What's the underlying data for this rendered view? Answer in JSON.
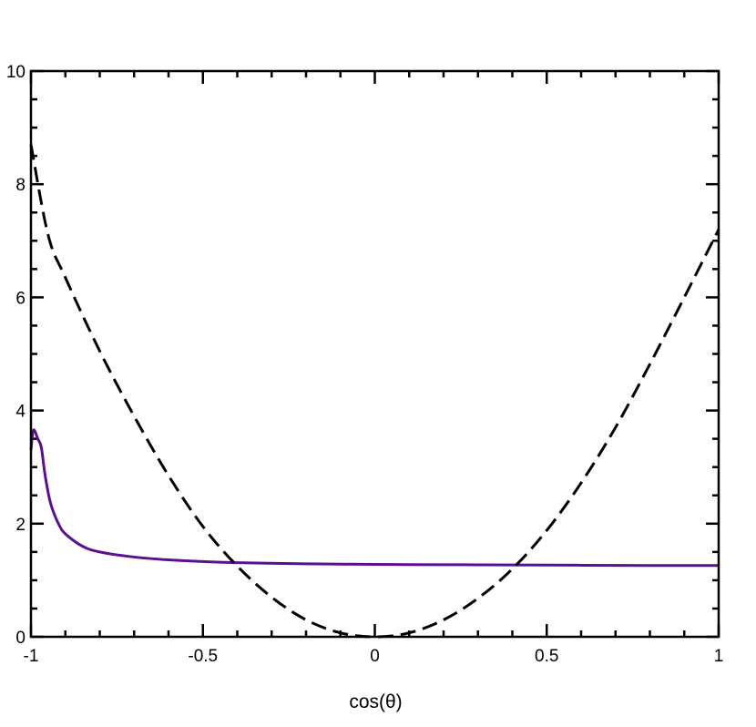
{
  "chart_data": {
    "type": "line",
    "title": "",
    "xlabel": "cos(θ)",
    "ylabel": "",
    "xlim": [
      -1,
      1
    ],
    "ylim": [
      0,
      10
    ],
    "x_ticks": [
      -1,
      -0.5,
      0,
      0.5,
      1
    ],
    "x_tick_labels": [
      "-1",
      "-0.5",
      "0",
      "0.5",
      "1"
    ],
    "y_ticks": [
      0,
      2,
      4,
      6,
      8,
      10
    ],
    "y_tick_labels": [
      "0",
      "2",
      "4",
      "6",
      "8",
      "10"
    ],
    "grid": false,
    "legend": "none",
    "series": [
      {
        "style": "solid",
        "color": "#5b0f91",
        "points": [
          [
            -1.0,
            3.3
          ],
          [
            -0.995,
            3.6
          ],
          [
            -0.99,
            3.65
          ],
          [
            -0.98,
            3.5
          ],
          [
            -0.97,
            3.35
          ],
          [
            -0.96,
            2.9
          ],
          [
            -0.95,
            2.55
          ],
          [
            -0.94,
            2.3
          ],
          [
            -0.92,
            2.0
          ],
          [
            -0.9,
            1.82
          ],
          [
            -0.85,
            1.6
          ],
          [
            -0.8,
            1.5
          ],
          [
            -0.7,
            1.41
          ],
          [
            -0.6,
            1.36
          ],
          [
            -0.5,
            1.33
          ],
          [
            -0.4,
            1.31
          ],
          [
            -0.2,
            1.29
          ],
          [
            0.0,
            1.28
          ],
          [
            0.2,
            1.275
          ],
          [
            0.4,
            1.27
          ],
          [
            0.6,
            1.265
          ],
          [
            0.8,
            1.26
          ],
          [
            1.0,
            1.26
          ]
        ]
      },
      {
        "style": "dashed",
        "color": "#000000",
        "points": [
          [
            -1.0,
            8.7
          ],
          [
            -0.95,
            7.1
          ],
          [
            -0.9,
            6.35
          ],
          [
            -0.8,
            5.05
          ],
          [
            -0.7,
            3.9
          ],
          [
            -0.6,
            2.85
          ],
          [
            -0.5,
            1.95
          ],
          [
            -0.4,
            1.25
          ],
          [
            -0.3,
            0.7
          ],
          [
            -0.2,
            0.3
          ],
          [
            -0.1,
            0.07
          ],
          [
            0.0,
            0.0
          ],
          [
            0.1,
            0.07
          ],
          [
            0.2,
            0.3
          ],
          [
            0.3,
            0.68
          ],
          [
            0.4,
            1.2
          ],
          [
            0.5,
            1.88
          ],
          [
            0.6,
            2.72
          ],
          [
            0.7,
            3.7
          ],
          [
            0.8,
            4.82
          ],
          [
            0.9,
            6.0
          ],
          [
            1.0,
            7.2
          ]
        ]
      }
    ]
  }
}
